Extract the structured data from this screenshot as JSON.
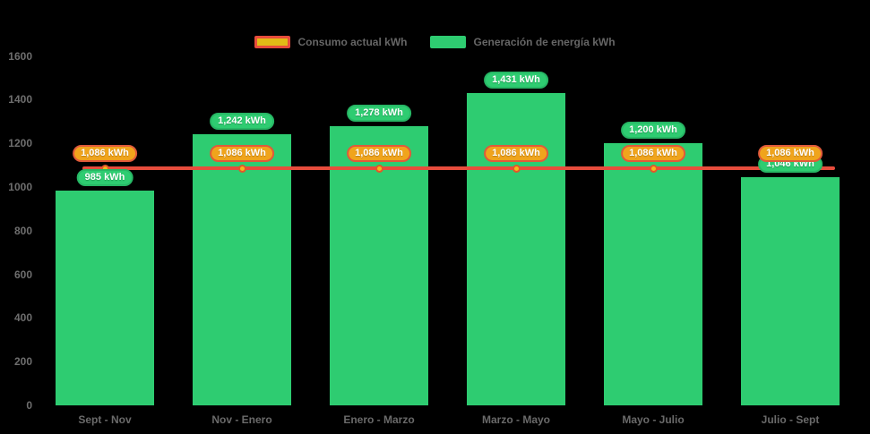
{
  "legend": {
    "consumption_label": "Consumo actual kWh",
    "generation_label": "Generación de energía kWh"
  },
  "colors": {
    "background": "#000000",
    "bar_green": "#2ecc71",
    "green_pill_border": "#27b765",
    "line_red": "#e74c3c",
    "marker_fill": "#f5b81c",
    "marker_border": "#e2572b",
    "orange_pill_fill": "#f0a41c",
    "orange_pill_border": "#e05a3a",
    "legend_swatch_yellow": "#e1ba16",
    "axis_text": "#6e6e6e"
  },
  "chart_data": {
    "type": "bar",
    "title": "",
    "xlabel": "",
    "ylabel": "",
    "categories": [
      "Sept - Nov",
      "Nov - Enero",
      "Enero - Marzo",
      "Marzo - Mayo",
      "Mayo - Julio",
      "Julio - Sept"
    ],
    "series": [
      {
        "name": "Generación de energía kWh",
        "kind": "bar",
        "values": [
          985,
          1242,
          1278,
          1431,
          1200,
          1046
        ],
        "labels": [
          "985 kWh",
          "1,242 kWh",
          "1,278 kWh",
          "1,431 kWh",
          "1,200 kWh",
          "1,046 kWh"
        ]
      },
      {
        "name": "Consumo actual kWh",
        "kind": "line",
        "values": [
          1086,
          1086,
          1086,
          1086,
          1086,
          1086
        ],
        "labels": [
          "1,086 kWh",
          "1,086 kWh",
          "1,086 kWh",
          "1,086 kWh",
          "1,086 kWh",
          "1,086 kWh"
        ]
      }
    ],
    "ylim": [
      0,
      1600
    ],
    "yticks": [
      0,
      200,
      400,
      600,
      800,
      1000,
      1200,
      1400,
      1600
    ],
    "grid": false,
    "legend_position": "top-center"
  }
}
